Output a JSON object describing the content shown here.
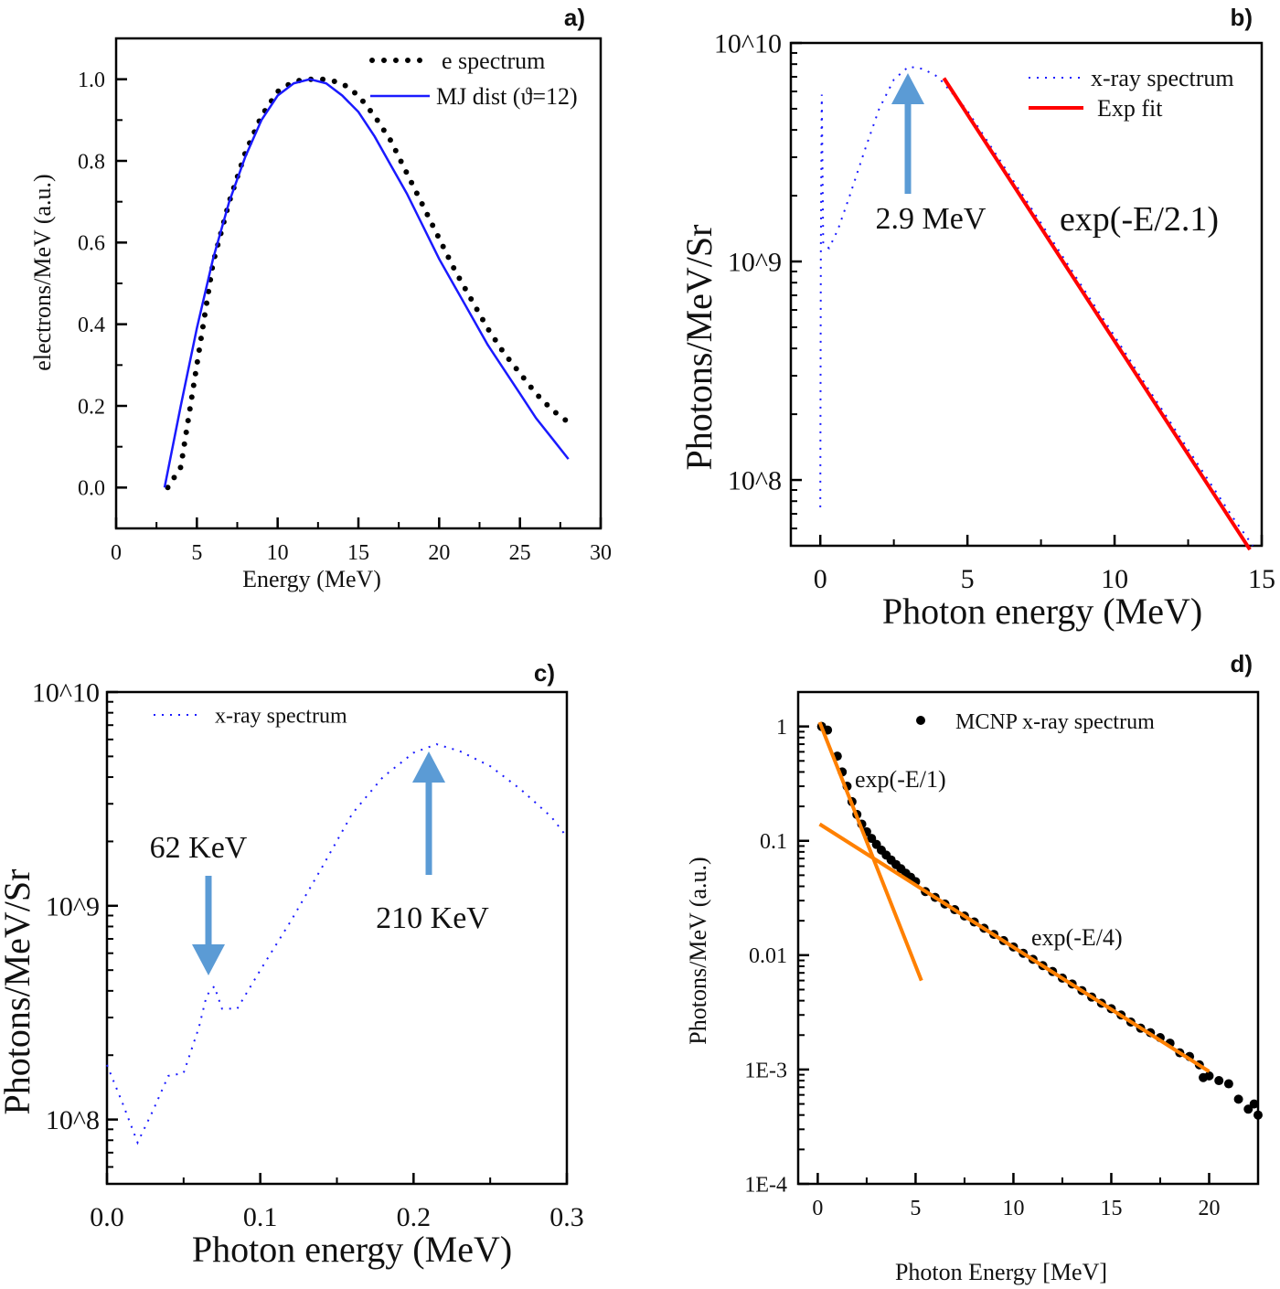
{
  "chart_data": [
    {
      "panel_label": "a)",
      "type": "line",
      "xlabel": "Energy (MeV)",
      "ylabel": "electrons/MeV (a.u.)",
      "xlim": [
        0,
        30
      ],
      "ylim": [
        -0.1,
        1.1
      ],
      "ylog": false,
      "xticks": [
        0,
        5,
        10,
        15,
        20,
        25,
        30
      ],
      "xtick_labels": [
        "0",
        "5",
        "10",
        "15",
        "20",
        "25",
        "30"
      ],
      "yticks": [
        0,
        0.2,
        0.4,
        0.6,
        0.8,
        1.0
      ],
      "ytick_labels": [
        "0.0",
        "0.2",
        "0.4",
        "0.6",
        "0.8",
        "1.0"
      ],
      "legend_position": "top-right",
      "series": [
        {
          "name": "e spectrum",
          "style": "dotted",
          "color": "#000000",
          "x": [
            3.2,
            4,
            5,
            6,
            7,
            8,
            9,
            10,
            11,
            12,
            13,
            14,
            15,
            16,
            17,
            18,
            19,
            20,
            21,
            22,
            23,
            24,
            25,
            26,
            27,
            28
          ],
          "y": [
            0.0,
            0.05,
            0.3,
            0.55,
            0.7,
            0.82,
            0.91,
            0.97,
            0.995,
            1.0,
            1.0,
            0.99,
            0.96,
            0.91,
            0.85,
            0.77,
            0.69,
            0.61,
            0.53,
            0.46,
            0.39,
            0.33,
            0.28,
            0.23,
            0.19,
            0.16
          ]
        },
        {
          "name": "MJ dist (ϑ=12)",
          "style": "solid",
          "color": "#1a1aff",
          "x": [
            3,
            4,
            5,
            6,
            7,
            8,
            9,
            10,
            11,
            12,
            13,
            14,
            15,
            16,
            17,
            18,
            19,
            20,
            21,
            22,
            23,
            24,
            25,
            26,
            27,
            28
          ],
          "y": [
            0.0,
            0.2,
            0.39,
            0.56,
            0.7,
            0.81,
            0.9,
            0.96,
            0.99,
            1.0,
            0.99,
            0.96,
            0.92,
            0.86,
            0.79,
            0.72,
            0.64,
            0.56,
            0.49,
            0.42,
            0.35,
            0.29,
            0.23,
            0.17,
            0.12,
            0.07
          ]
        }
      ],
      "annotations": []
    },
    {
      "panel_label": "b)",
      "type": "line",
      "xlabel": "Photon energy (MeV)",
      "ylabel": "Photons/MeV/Sr",
      "xlim": [
        -1,
        15
      ],
      "ylim": [
        50000000.0,
        10000000000.0
      ],
      "ylog": true,
      "xticks": [
        0,
        5,
        10,
        15
      ],
      "xtick_labels": [
        "0",
        "5",
        "10",
        "15"
      ],
      "yticks": [
        100000000.0,
        1000000000.0,
        10000000000.0
      ],
      "ytick_labels": [
        "10^8",
        "10^9",
        "10^10"
      ],
      "legend_position": "top-right",
      "series": [
        {
          "name": "x-ray spectrum",
          "style": "dashed",
          "color": "#1a1aff",
          "x": [
            0,
            0.02,
            0.05,
            0.1,
            0.3,
            0.6,
            1,
            1.5,
            2,
            2.5,
            3,
            3.5,
            4,
            5,
            6,
            7,
            8,
            9,
            10,
            11,
            12,
            13,
            14,
            14.7
          ],
          "y": [
            75000000.0,
            1100000000.0,
            5800000000.0,
            1200000000.0,
            1150000000.0,
            1400000000.0,
            2000000000.0,
            3200000000.0,
            5000000000.0,
            6800000000.0,
            7800000000.0,
            7600000000.0,
            7000000000.0,
            4900000000.0,
            3050000000.0,
            1900000000.0,
            1180000000.0,
            730000000.0,
            455000000.0,
            280000000.0,
            175000000.0,
            109000000.0,
            68000000.0,
            50000000.0
          ]
        },
        {
          "name": "Exp fit",
          "style": "solid-thick",
          "color": "#ff0000",
          "x": [
            4.2,
            14.6
          ],
          "y": [
            6900000000.0,
            48000000.0
          ]
        }
      ],
      "annotations": [
        {
          "text": "2.9 MeV",
          "arrow": {
            "x": 3,
            "from": 1700000000.0,
            "to": 7200000000.0
          },
          "color": "#5b9bd5"
        },
        {
          "text": "exp(-E/2.1)"
        }
      ]
    },
    {
      "panel_label": "c)",
      "type": "line",
      "xlabel": "Photon energy (MeV)",
      "ylabel": "Photons/MeV/Sr",
      "xlim": [
        0,
        0.3
      ],
      "ylim": [
        50000000.0,
        10000000000.0
      ],
      "ylog": true,
      "xticks": [
        0,
        0.1,
        0.2,
        0.3
      ],
      "xtick_labels": [
        "0.0",
        "0.1",
        "0.2",
        "0.3"
      ],
      "yticks": [
        100000000.0,
        1000000000.0,
        10000000000.0
      ],
      "ytick_labels": [
        "10^8",
        "10^9",
        "10^10"
      ],
      "legend_position": "top-left",
      "series": [
        {
          "name": "x-ray spectrum",
          "style": "dashed",
          "color": "#1a1aff",
          "x": [
            0,
            0.01,
            0.02,
            0.03,
            0.04,
            0.05,
            0.06,
            0.065,
            0.07,
            0.075,
            0.085,
            0.1,
            0.12,
            0.14,
            0.16,
            0.18,
            0.2,
            0.215,
            0.23,
            0.25,
            0.27,
            0.29,
            0.3
          ],
          "y": [
            180000000.0,
            120000000.0,
            78000000.0,
            110000000.0,
            160000000.0,
            165000000.0,
            270000000.0,
            380000000.0,
            420000000.0,
            330000000.0,
            330000000.0,
            500000000.0,
            850000000.0,
            1500000000.0,
            2700000000.0,
            4000000000.0,
            5200000000.0,
            5700000000.0,
            5300000000.0,
            4500000000.0,
            3500000000.0,
            2600000000.0,
            2100000000.0
          ]
        }
      ],
      "annotations": [
        {
          "text": "62 KeV",
          "arrow": {
            "x": 0.066,
            "from": 1400000000.0,
            "to": 480000000.0
          },
          "color": "#5b9bd5"
        },
        {
          "text": "210 KeV",
          "arrow": {
            "x": 0.21,
            "from": 1400000000.0,
            "to": 5400000000.0
          },
          "color": "#5b9bd5"
        }
      ]
    },
    {
      "panel_label": "d)",
      "type": "scatter",
      "xlabel": "Photon Energy [MeV]",
      "ylabel": "Photons/MeV (a.u.)",
      "xlim": [
        -1,
        22.5
      ],
      "ylim": [
        0.0001,
        2
      ],
      "ylog": true,
      "xticks": [
        0,
        5,
        10,
        15,
        20
      ],
      "xtick_labels": [
        "0",
        "5",
        "10",
        "15",
        "20"
      ],
      "yticks": [
        0.0001,
        0.001,
        0.01,
        0.1,
        1
      ],
      "ytick_labels": [
        "1E-4",
        "1E-3",
        "0.01",
        "0.1",
        "1"
      ],
      "legend_position": "top",
      "series": [
        {
          "name": "MCNP x-ray spectrum",
          "style": "markers",
          "color": "#000000",
          "x": [
            0.2,
            0.5,
            1,
            1.25,
            1.5,
            1.75,
            2,
            2.25,
            2.5,
            2.75,
            3,
            3.25,
            3.5,
            3.75,
            4,
            4.25,
            4.5,
            4.75,
            5,
            5.5,
            6,
            6.5,
            7,
            7.5,
            8,
            8.5,
            9,
            9.5,
            10,
            10.5,
            11,
            11.5,
            12,
            12.5,
            13,
            13.5,
            14,
            14.5,
            15,
            15.5,
            16,
            16.5,
            17,
            17.5,
            18,
            18.5,
            19,
            19.5,
            19.7,
            20,
            20.5,
            21,
            21.5,
            22,
            22.3,
            22.5
          ],
          "y": [
            1.0,
            0.93,
            0.55,
            0.4,
            0.3,
            0.22,
            0.17,
            0.14,
            0.12,
            0.105,
            0.093,
            0.083,
            0.075,
            0.068,
            0.062,
            0.057,
            0.052,
            0.048,
            0.044,
            0.036,
            0.032,
            0.028,
            0.025,
            0.022,
            0.0195,
            0.0172,
            0.0152,
            0.0134,
            0.0118,
            0.0104,
            0.0092,
            0.0081,
            0.0072,
            0.0063,
            0.0056,
            0.0049,
            0.0043,
            0.0038,
            0.0034,
            0.003,
            0.0026,
            0.0023,
            0.0021,
            0.0019,
            0.0017,
            0.0014,
            0.0013,
            0.0011,
            0.00085,
            0.00088,
            0.0008,
            0.00075,
            0.00055,
            0.00045,
            0.0005,
            0.0004
          ]
        },
        {
          "style": "solid-thick",
          "color": "#ff8000",
          "x": [
            0.1,
            5.3
          ],
          "y": [
            1.09,
            0.006
          ]
        },
        {
          "style": "solid-thick",
          "color": "#ff8000",
          "x": [
            0.1,
            20
          ],
          "y": [
            0.14,
            0.00096
          ]
        }
      ],
      "annotations": [
        {
          "text": "exp(-E/1)"
        },
        {
          "text": "exp(-E/4)"
        }
      ]
    }
  ]
}
